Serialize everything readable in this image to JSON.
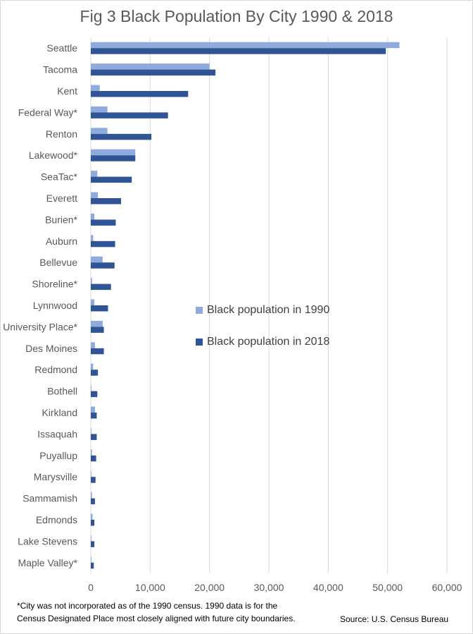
{
  "chart_data": {
    "type": "bar",
    "orientation": "horizontal",
    "title": "Fig 3 Black Population By City 1990 & 2018",
    "categories": [
      "Seattle",
      "Tacoma",
      "Kent",
      "Federal Way*",
      "Renton",
      "Lakewood*",
      "SeaTac*",
      "Everett",
      "Burien*",
      "Auburn",
      "Bellevue",
      "Shoreline*",
      "Lynnwood",
      "University Place*",
      "Des Moines",
      "Redmond",
      "Bothell",
      "Kirkland",
      "Issaquah",
      "Puyallup",
      "Marysville",
      "Sammamish",
      "Edmonds",
      "Lake Stevens",
      "Maple Valley*"
    ],
    "series": [
      {
        "name": "Black population in 1990",
        "color": "#8faadc",
        "values": [
          52000,
          20000,
          1500,
          2800,
          2800,
          7500,
          1100,
          1200,
          600,
          400,
          2000,
          200,
          600,
          2000,
          700,
          400,
          100,
          700,
          100,
          200,
          100,
          200,
          300,
          100,
          100
        ]
      },
      {
        "name": "Black population in 2018",
        "color": "#2f5597",
        "values": [
          49700,
          21000,
          16400,
          13000,
          10200,
          7500,
          6900,
          5100,
          4200,
          4100,
          4000,
          3400,
          2900,
          2200,
          2200,
          1200,
          1100,
          1000,
          1000,
          900,
          800,
          700,
          600,
          600,
          500
        ]
      }
    ],
    "xlim": [
      0,
      60000
    ],
    "xticks": [
      0,
      10000,
      20000,
      30000,
      40000,
      50000,
      60000
    ],
    "xtick_labels": [
      "0",
      "10,000",
      "20,000",
      "30,000",
      "40,000",
      "50,000",
      "60,000"
    ],
    "grid": true,
    "legend_position": "center-right"
  },
  "footnote": [
    "*City was not incorporated as of the 1990 census. 1990 data is for the",
    "Census Designated Place most closely aligned with future city boundaries."
  ],
  "source": "Source: U.S. Census Bureau"
}
